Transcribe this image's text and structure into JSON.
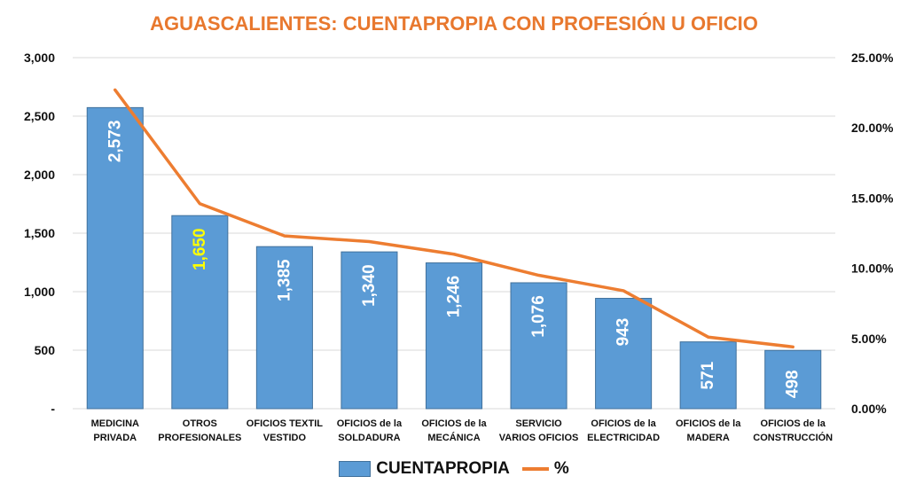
{
  "chart_data": {
    "type": "bar",
    "title": "AGUASCALIENTES: CUENTAPROPIA CON PROFESIÓN U OFICIO",
    "categories": [
      [
        "MEDICINA",
        "PRIVADA"
      ],
      [
        "OTROS",
        "PROFESIONALES"
      ],
      [
        "OFICIOS TEXTIL",
        "VESTIDO"
      ],
      [
        "OFICIOS de la",
        "SOLDADURA"
      ],
      [
        "OFICIOS de la",
        "MECÁNICA"
      ],
      [
        "SERVICIO",
        "VARIOS OFICIOS"
      ],
      [
        "OFICIOS de la",
        "ELECTRICIDAD"
      ],
      [
        "OFICIOS  de la",
        "MADERA"
      ],
      [
        "OFICIOS de la",
        "CONSTRUCCIÓN"
      ]
    ],
    "series": [
      {
        "name": "CUENTAPROPIA",
        "type": "bar",
        "axis": "left",
        "color": "#5B9BD5",
        "values": [
          2573,
          1650,
          1385,
          1340,
          1246,
          1076,
          943,
          571,
          498
        ],
        "labels": [
          "2,573",
          "1,650",
          "1,385",
          "1,340",
          "1,246",
          "1,076",
          "943",
          "571",
          "498"
        ],
        "label_colors": [
          "#ffffff",
          "#FFFF00",
          "#ffffff",
          "#ffffff",
          "#ffffff",
          "#ffffff",
          "#ffffff",
          "#ffffff",
          "#ffffff"
        ]
      },
      {
        "name": "%",
        "type": "line",
        "axis": "right",
        "color": "#ED7D31",
        "values": [
          22.7,
          14.6,
          12.3,
          11.9,
          11.0,
          9.5,
          8.4,
          5.1,
          4.4
        ]
      }
    ],
    "y_left": {
      "min": 0,
      "max": 3000,
      "ticks": [
        0,
        500,
        1000,
        1500,
        2000,
        2500,
        3000
      ],
      "tick_labels": [
        "-",
        "500",
        "1,000",
        "1,500",
        "2,000",
        "2,500",
        "3,000"
      ]
    },
    "y_right": {
      "min": 0,
      "max": 25,
      "ticks": [
        0,
        5,
        10,
        15,
        20,
        25
      ],
      "tick_labels": [
        "0.00%",
        "5.00%",
        "10.00%",
        "15.00%",
        "20.00%",
        "25.00%"
      ]
    },
    "grid": true,
    "legend": {
      "position": "bottom",
      "bar_label": "CUENTAPROPIA",
      "line_label": "%"
    }
  }
}
